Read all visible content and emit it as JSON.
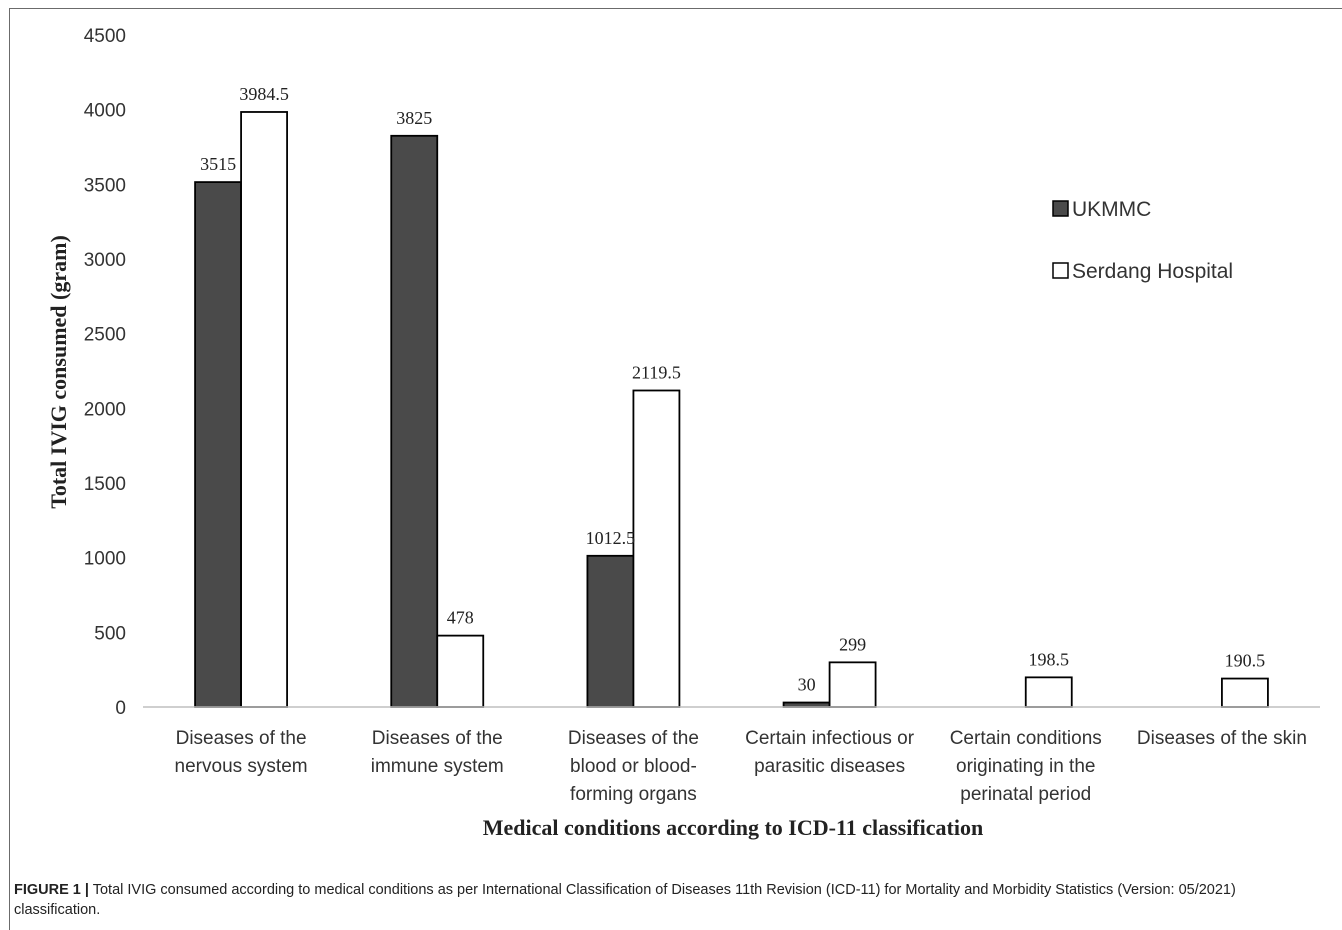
{
  "chart_data": {
    "type": "bar",
    "categories": [
      [
        "Diseases of the",
        "nervous system"
      ],
      [
        "Diseases of the",
        "immune system"
      ],
      [
        "Diseases of the",
        "blood or blood-",
        "forming organs"
      ],
      [
        "Certain infectious or",
        "parasitic diseases"
      ],
      [
        "Certain conditions",
        "originating in the",
        "perinatal period"
      ],
      [
        "Diseases of the skin"
      ]
    ],
    "series": [
      {
        "name": "UKMMC",
        "color": "#4a4a4a",
        "values": [
          3515,
          3825,
          1012.5,
          30,
          null,
          null
        ],
        "labels": [
          "3515",
          "3825",
          "1012.5",
          "30",
          "",
          ""
        ]
      },
      {
        "name": "Serdang Hospital",
        "color": "#ffffff",
        "values": [
          3984.5,
          478,
          2119.5,
          299,
          198.5,
          190.5
        ],
        "labels": [
          "3984.5",
          "478",
          "2119.5",
          "299",
          "198.5",
          "190.5"
        ]
      }
    ],
    "xlabel": "Medical conditions according to ICD-11 classification",
    "ylabel": "Total IVIG consumed (gram)",
    "ylim": [
      0,
      4500
    ],
    "yticks": [
      0,
      500,
      1000,
      1500,
      2000,
      2500,
      3000,
      3500,
      4000,
      4500
    ],
    "grid": false,
    "legend": "right"
  },
  "caption": {
    "label": "FIGURE 1 |",
    "text": " Total IVIG consumed according to medical conditions as per International Classification of Diseases 11th Revision (ICD-11) for Mortality and Morbidity Statistics (Version: 05/2021) classification."
  }
}
